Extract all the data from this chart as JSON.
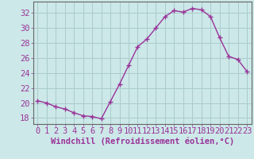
{
  "x": [
    0,
    1,
    2,
    3,
    4,
    5,
    6,
    7,
    8,
    9,
    10,
    11,
    12,
    13,
    14,
    15,
    16,
    17,
    18,
    19,
    20,
    21,
    22,
    23
  ],
  "y": [
    20.3,
    20.0,
    19.5,
    19.2,
    18.7,
    18.3,
    18.2,
    17.9,
    20.2,
    22.5,
    25.0,
    27.5,
    28.5,
    30.0,
    31.5,
    32.3,
    32.1,
    32.6,
    32.4,
    31.5,
    28.7,
    26.2,
    25.8,
    24.2
  ],
  "line_color": "#993399",
  "marker": "+",
  "marker_size": 4,
  "marker_lw": 1.0,
  "bg_color": "#cce8e8",
  "grid_color": "#aacccc",
  "axis_color": "#666666",
  "xlabel": "Windchill (Refroidissement éolien,°C)",
  "ylabel_ticks": [
    18,
    20,
    22,
    24,
    26,
    28,
    30,
    32
  ],
  "ylim": [
    17.2,
    33.5
  ],
  "xlim": [
    -0.5,
    23.5
  ],
  "font_color": "#993399",
  "font_size": 7.5,
  "xlabel_font_size": 7.5,
  "line_width": 1.0
}
